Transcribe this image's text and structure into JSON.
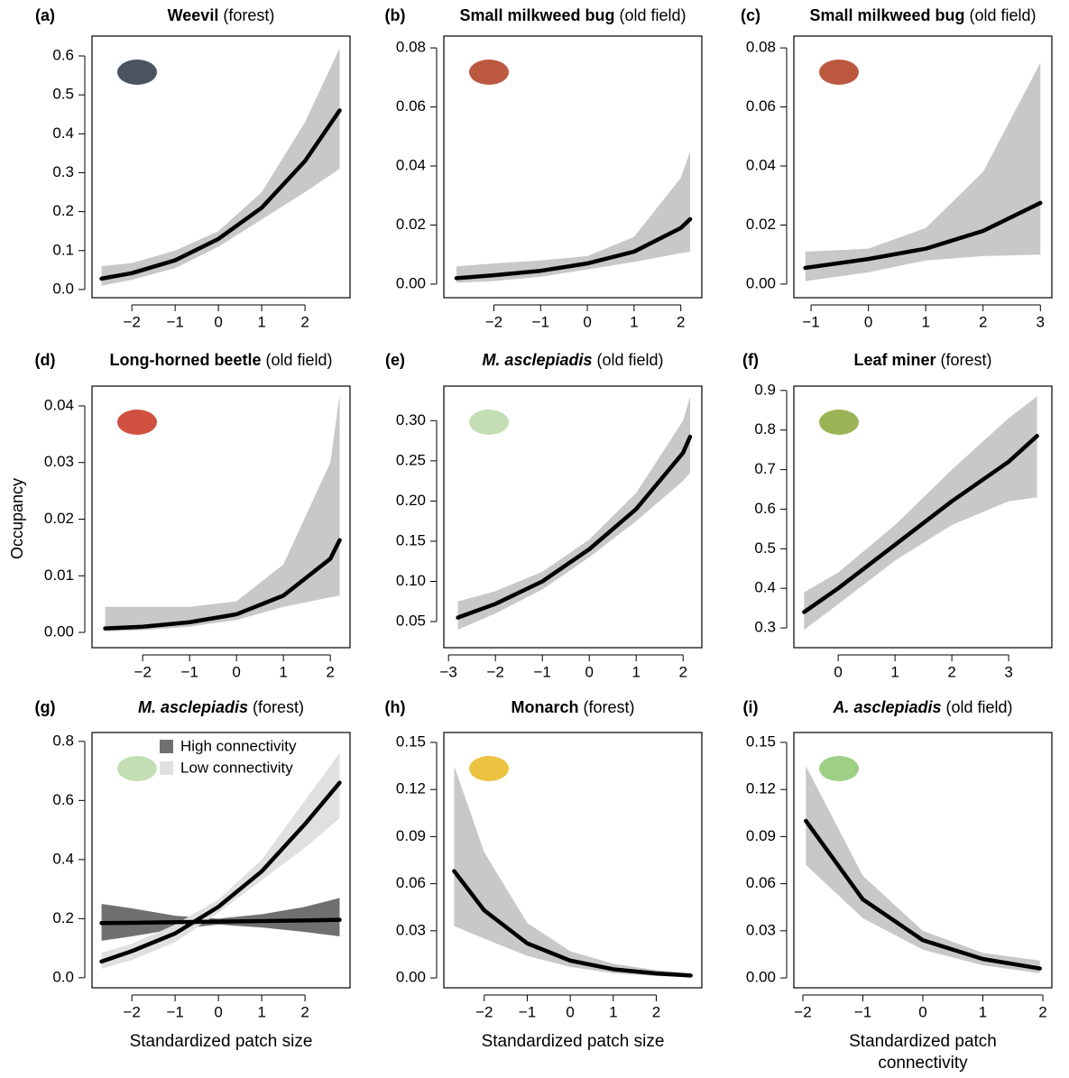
{
  "y_label": "Occupancy",
  "chart_data": [
    {
      "type": "line",
      "panel_label": "(a)",
      "title": "Weevil",
      "subtitle": "(forest)",
      "x": [
        -2.7,
        -2,
        -1,
        0,
        1,
        2,
        2.8
      ],
      "series": [
        {
          "color": "#000000",
          "band_color": "#c8c8c8",
          "values": [
            0.028,
            0.042,
            0.075,
            0.13,
            0.21,
            0.33,
            0.46
          ],
          "lower": [
            0.01,
            0.025,
            0.055,
            0.11,
            0.18,
            0.25,
            0.31
          ],
          "upper": [
            0.06,
            0.068,
            0.1,
            0.15,
            0.25,
            0.43,
            0.62
          ]
        }
      ],
      "xlim": [
        -2.92,
        3.04
      ],
      "ylim": [
        -0.021,
        0.651
      ],
      "xticks": [
        {
          "value": -2,
          "label": "−2"
        },
        {
          "value": -1,
          "label": "−1"
        },
        0,
        1,
        2
      ],
      "yticks": [
        {
          "value": 0,
          "label": "0.0"
        },
        0.1,
        0.2,
        0.3,
        0.4,
        0.5,
        0.6
      ]
    },
    {
      "type": "line",
      "panel_label": "(b)",
      "title": "Small milkweed bug",
      "subtitle": "(old field)",
      "x": [
        -2.8,
        -2,
        -1,
        0,
        1,
        2,
        2.2
      ],
      "series": [
        {
          "color": "#000000",
          "band_color": "#c8c8c8",
          "values": [
            0.002,
            0.003,
            0.0045,
            0.007,
            0.011,
            0.019,
            0.022
          ],
          "lower": [
            0.0005,
            0.001,
            0.0025,
            0.005,
            0.0075,
            0.0105,
            0.011
          ],
          "upper": [
            0.006,
            0.007,
            0.008,
            0.0095,
            0.016,
            0.036,
            0.045
          ]
        }
      ],
      "xlim": [
        -3.07,
        2.45
      ],
      "ylim": [
        -0.0046,
        0.084
      ],
      "xticks": [
        {
          "value": -2,
          "label": "−2"
        },
        {
          "value": -1,
          "label": "−1"
        },
        0,
        1,
        2
      ],
      "yticks": [
        {
          "value": 0,
          "label": "0.00"
        },
        0.02,
        0.04,
        0.06,
        0.08
      ]
    },
    {
      "type": "line",
      "panel_label": "(c)",
      "title": "Small milkweed bug",
      "subtitle": "(old field)",
      "x": [
        -1.1,
        0,
        1,
        2,
        3
      ],
      "series": [
        {
          "color": "#000000",
          "band_color": "#c8c8c8",
          "values": [
            0.0055,
            0.0085,
            0.012,
            0.018,
            0.0275
          ],
          "lower": [
            0.001,
            0.004,
            0.008,
            0.0095,
            0.01
          ],
          "upper": [
            0.011,
            0.012,
            0.019,
            0.038,
            0.075
          ]
        }
      ],
      "xlim": [
        -1.3,
        3.2
      ],
      "ylim": [
        -0.0046,
        0.084
      ],
      "xticks": [
        {
          "value": -1,
          "label": "−1"
        },
        0,
        1,
        2,
        3
      ],
      "yticks": [
        {
          "value": 0,
          "label": "0.00"
        },
        0.02,
        0.04,
        0.06,
        0.08
      ]
    },
    {
      "type": "line",
      "panel_label": "(d)",
      "title": "Long-horned beetle",
      "subtitle": "(old field)",
      "x": [
        -2.8,
        -2,
        -1,
        0,
        1,
        2,
        2.2
      ],
      "series": [
        {
          "color": "#000000",
          "band_color": "#c8c8c8",
          "values": [
            0.0007,
            0.001,
            0.0018,
            0.0032,
            0.0065,
            0.013,
            0.0163
          ],
          "lower": [
            0.0002,
            0.0004,
            0.001,
            0.0022,
            0.0045,
            0.0062,
            0.0065
          ],
          "upper": [
            0.0045,
            0.0045,
            0.0045,
            0.0055,
            0.012,
            0.03,
            0.042
          ]
        }
      ],
      "xlim": [
        -3.08,
        2.42
      ],
      "ylim": [
        -0.0027,
        0.0435
      ],
      "xticks": [
        {
          "value": -2,
          "label": "−2"
        },
        {
          "value": -1,
          "label": "−1"
        },
        0,
        1,
        2
      ],
      "yticks": [
        {
          "value": 0,
          "label": "0.00"
        },
        0.01,
        0.02,
        0.03,
        0.04
      ]
    },
    {
      "type": "line",
      "panel_label": "(e)",
      "title": "M. asclepiadis",
      "title_italic": true,
      "subtitle": "(old field)",
      "x": [
        -2.8,
        -2,
        -1,
        0,
        1,
        2,
        2.15
      ],
      "series": [
        {
          "color": "#000000",
          "band_color": "#c8c8c8",
          "values": [
            0.055,
            0.072,
            0.1,
            0.14,
            0.19,
            0.26,
            0.28
          ],
          "lower": [
            0.04,
            0.06,
            0.09,
            0.13,
            0.175,
            0.225,
            0.235
          ],
          "upper": [
            0.075,
            0.088,
            0.112,
            0.152,
            0.21,
            0.3,
            0.33
          ]
        }
      ],
      "xlim": [
        -3.1,
        2.4
      ],
      "ylim": [
        0.0175,
        0.343
      ],
      "xticks": [
        {
          "value": -3,
          "label": "−3"
        },
        {
          "value": -2,
          "label": "−2"
        },
        {
          "value": -1,
          "label": "−1"
        },
        0,
        1,
        2
      ],
      "yticks": [
        0.05,
        {
          "value": 0.1,
          "label": "0.10"
        },
        0.15,
        {
          "value": 0.2,
          "label": "0.20"
        },
        0.25,
        {
          "value": 0.3,
          "label": "0.30"
        }
      ]
    },
    {
      "type": "line",
      "panel_label": "(f)",
      "title": "Leaf miner",
      "subtitle": "(forest)",
      "x": [
        -0.6,
        0,
        1,
        2,
        3,
        3.5
      ],
      "series": [
        {
          "color": "#000000",
          "band_color": "#c8c8c8",
          "values": [
            0.34,
            0.4,
            0.51,
            0.62,
            0.72,
            0.785
          ],
          "lower": [
            0.295,
            0.36,
            0.47,
            0.56,
            0.62,
            0.63
          ],
          "upper": [
            0.39,
            0.44,
            0.56,
            0.7,
            0.83,
            0.885
          ]
        }
      ],
      "xlim": [
        -0.78,
        3.76
      ],
      "ylim": [
        0.25,
        0.911
      ],
      "xticks": [
        0,
        1,
        2,
        3
      ],
      "yticks": [
        0.3,
        0.4,
        0.5,
        0.6,
        0.7,
        0.8,
        0.9
      ]
    },
    {
      "type": "line",
      "panel_label": "(g)",
      "title": "M. asclepiadis",
      "title_italic": true,
      "subtitle": "(forest)",
      "x_label": "Standardized patch size",
      "legend": "upper left",
      "x": [
        -2.7,
        -2,
        -1,
        0,
        1,
        2,
        2.8
      ],
      "series": [
        {
          "name": "High connectivity",
          "color": "#000000",
          "band_color": "#707070",
          "values": [
            0.185,
            0.186,
            0.188,
            0.19,
            0.192,
            0.194,
            0.196
          ],
          "lower": [
            0.125,
            0.14,
            0.165,
            0.18,
            0.17,
            0.155,
            0.14
          ],
          "upper": [
            0.25,
            0.235,
            0.21,
            0.2,
            0.215,
            0.24,
            0.27
          ]
        },
        {
          "name": "Low connectivity",
          "color": "#000000",
          "band_color": "#e0e0e0",
          "values": [
            0.055,
            0.09,
            0.15,
            0.24,
            0.36,
            0.52,
            0.66
          ],
          "lower": [
            0.03,
            0.06,
            0.12,
            0.22,
            0.33,
            0.44,
            0.54
          ],
          "upper": [
            0.085,
            0.115,
            0.18,
            0.265,
            0.4,
            0.6,
            0.76
          ]
        }
      ],
      "xlim": [
        -2.92,
        3.04
      ],
      "ylim": [
        -0.034,
        0.83
      ],
      "xticks": [
        {
          "value": -2,
          "label": "−2"
        },
        {
          "value": -1,
          "label": "−1"
        },
        0,
        1,
        2
      ],
      "yticks": [
        {
          "value": 0,
          "label": "0.0"
        },
        0.2,
        0.4,
        0.6,
        0.8
      ]
    },
    {
      "type": "line",
      "panel_label": "(h)",
      "title": "Monarch",
      "subtitle": "(forest)",
      "x_label": "Standardized patch size",
      "x": [
        -2.7,
        -2,
        -1,
        0,
        1,
        2,
        2.8
      ],
      "series": [
        {
          "color": "#000000",
          "band_color": "#c8c8c8",
          "values": [
            0.068,
            0.043,
            0.022,
            0.011,
            0.0055,
            0.0028,
            0.0015
          ],
          "lower": [
            0.033,
            0.025,
            0.014,
            0.007,
            0.003,
            0.0012,
            0.0005
          ],
          "upper": [
            0.135,
            0.08,
            0.035,
            0.017,
            0.009,
            0.005,
            0.003
          ]
        }
      ],
      "xlim": [
        -2.94,
        3.06
      ],
      "ylim": [
        -0.0063,
        0.1563
      ],
      "xticks": [
        {
          "value": -2,
          "label": "−2"
        },
        {
          "value": -1,
          "label": "−1"
        },
        0,
        1,
        2
      ],
      "yticks": [
        {
          "value": 0,
          "label": "0.00"
        },
        0.03,
        0.06,
        0.09,
        0.12,
        0.15
      ]
    },
    {
      "type": "line",
      "panel_label": "(i)",
      "title": "A. asclepiadis",
      "title_italic": true,
      "subtitle": "(old field)",
      "x_label": "Standardized patch connectivity",
      "x": [
        -1.95,
        -1,
        0,
        1,
        1.95
      ],
      "series": [
        {
          "color": "#000000",
          "band_color": "#c8c8c8",
          "values": [
            0.1,
            0.05,
            0.024,
            0.012,
            0.006
          ],
          "lower": [
            0.072,
            0.038,
            0.018,
            0.008,
            0.003
          ],
          "upper": [
            0.135,
            0.065,
            0.03,
            0.016,
            0.011
          ]
        }
      ],
      "xlim": [
        -2.15,
        2.15
      ],
      "ylim": [
        -0.0063,
        0.1563
      ],
      "xticks": [
        {
          "value": -2,
          "label": "−2"
        },
        {
          "value": -1,
          "label": "−1"
        },
        0,
        1,
        2
      ],
      "yticks": [
        {
          "value": 0,
          "label": "0.00"
        },
        0.03,
        0.06,
        0.09,
        0.12,
        0.15
      ]
    }
  ]
}
